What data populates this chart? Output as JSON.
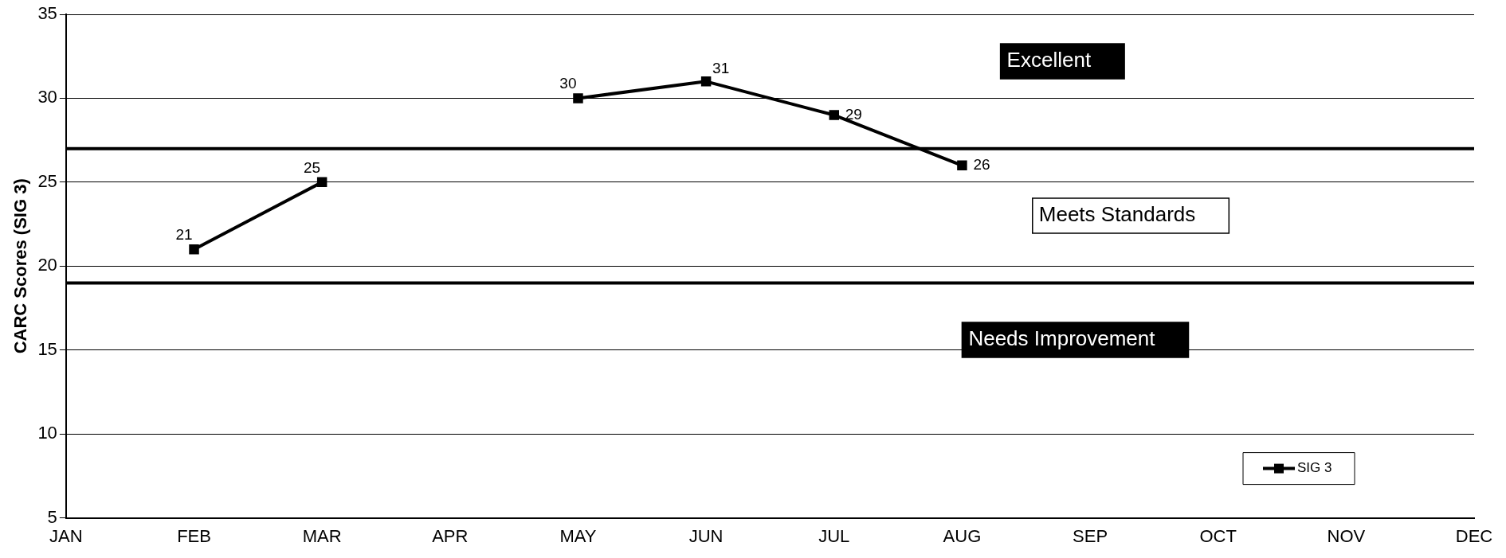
{
  "chart_data": {
    "type": "line",
    "ylabel": "CARC Scores (SIG 3)",
    "categories": [
      "JAN",
      "FEB",
      "MAR",
      "APR",
      "MAY",
      "JUN",
      "JUL",
      "AUG",
      "SEP",
      "OCT",
      "NOV",
      "DEC"
    ],
    "series": [
      {
        "name": "SIG 3",
        "color": "#000000",
        "values": [
          null,
          21,
          25,
          null,
          30,
          31,
          29,
          26,
          null,
          null,
          null,
          null
        ]
      }
    ],
    "ylim": [
      5,
      35
    ],
    "yticks": [
      5,
      10,
      15,
      20,
      25,
      30,
      35
    ],
    "grid": "y",
    "legend": "bottom right",
    "marker": "square",
    "line_style": "solid",
    "data_labels": true,
    "ref_lines": [
      {
        "axis": "y",
        "value": 27,
        "color": "#000000"
      },
      {
        "axis": "y",
        "value": 19,
        "color": "#000000"
      }
    ],
    "annotations": [
      "Excellent",
      "Meets Standards",
      "Needs Improvement"
    ]
  }
}
